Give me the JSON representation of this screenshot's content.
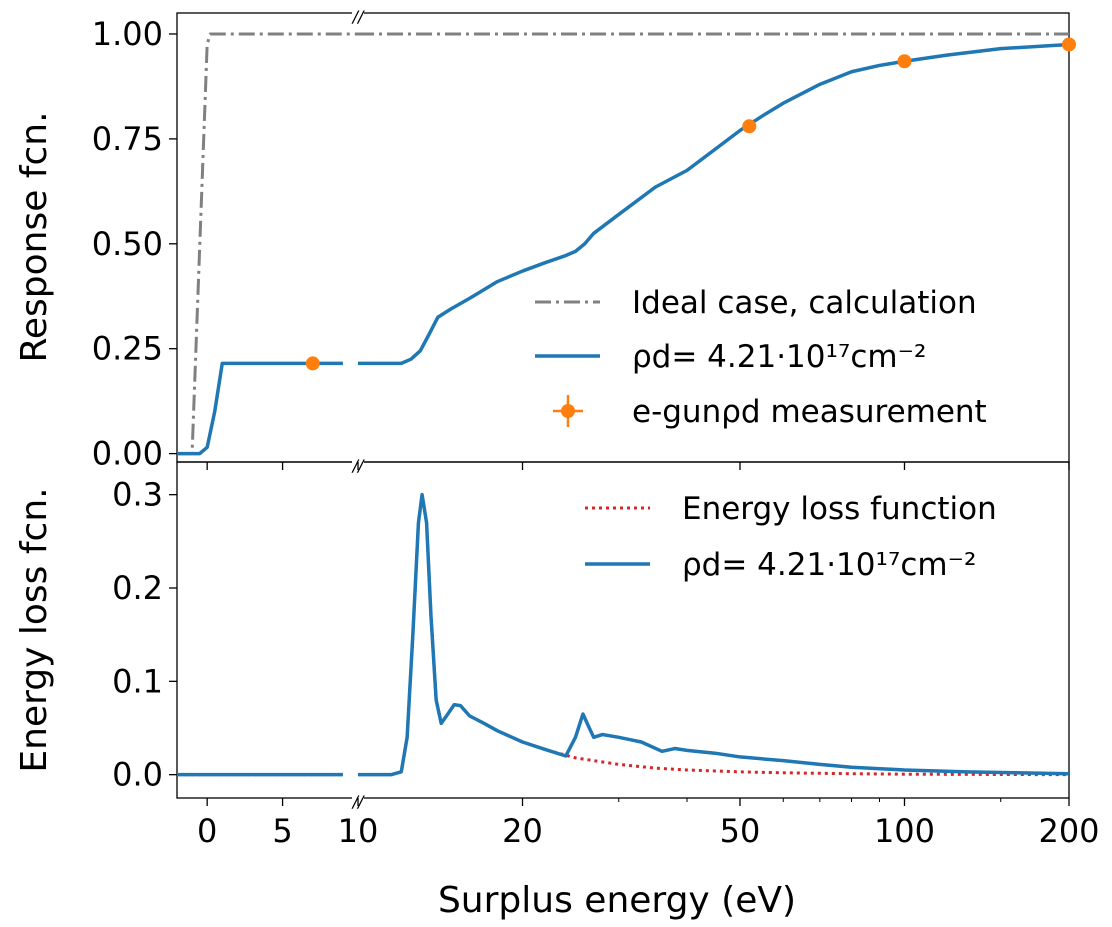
{
  "chart_data": [
    {
      "type": "line",
      "panel": "top",
      "ylabel": "Response fcn.",
      "xlabel": "",
      "ylim": [
        -0.02,
        1.05
      ],
      "yticks": [
        0.0,
        0.25,
        0.5,
        0.75,
        1.0
      ],
      "ytick_labels": [
        "0.00",
        "0.25",
        "0.50",
        "0.75",
        "1.00"
      ],
      "x_axis": "broken: linear from -2 to 10, log from 10 to 200",
      "legend_placement": "lower-right",
      "series": [
        {
          "name": "Ideal case, calculation",
          "style": "dash-dot",
          "color": "#808080",
          "segments": [
            [
              [
                -2.0,
                0.0
              ],
              [
                -1.0,
                0.0
              ],
              [
                0.0,
                0.975
              ],
              [
                0.2,
                1.0
              ],
              [
                10.0,
                1.0
              ]
            ],
            [
              [
                10.0,
                1.0
              ],
              [
                200.0,
                1.0
              ]
            ]
          ]
        },
        {
          "name": "ρd= 4.21·10^17 cm^-2",
          "style": "solid",
          "color": "#1f77b4",
          "segments": [
            [
              [
                -2.0,
                0.0
              ],
              [
                -0.5,
                0.0
              ],
              [
                0.0,
                0.015
              ],
              [
                0.5,
                0.1
              ],
              [
                1.0,
                0.215
              ],
              [
                9.0,
                0.215
              ]
            ],
            [
              [
                10.0,
                0.215
              ],
              [
                12.0,
                0.215
              ],
              [
                12.5,
                0.225
              ],
              [
                13.0,
                0.245
              ],
              [
                13.5,
                0.285
              ],
              [
                14.0,
                0.325
              ],
              [
                14.8,
                0.345
              ],
              [
                16.0,
                0.37
              ],
              [
                18.0,
                0.41
              ],
              [
                20.0,
                0.435
              ],
              [
                22.0,
                0.455
              ],
              [
                24.0,
                0.472
              ],
              [
                25.0,
                0.482
              ],
              [
                26.0,
                0.5
              ],
              [
                27.0,
                0.525
              ],
              [
                30.0,
                0.57
              ],
              [
                35.0,
                0.635
              ],
              [
                40.0,
                0.675
              ],
              [
                45.0,
                0.725
              ],
              [
                50.0,
                0.77
              ],
              [
                55.0,
                0.805
              ],
              [
                60.0,
                0.835
              ],
              [
                70.0,
                0.88
              ],
              [
                80.0,
                0.91
              ],
              [
                90.0,
                0.925
              ],
              [
                100.0,
                0.935
              ],
              [
                120.0,
                0.95
              ],
              [
                150.0,
                0.965
              ],
              [
                200.0,
                0.975
              ]
            ]
          ]
        },
        {
          "name": "e-gunρd measurement",
          "style": "markers",
          "color": "#ff7f0e",
          "points": [
            [
              7.0,
              0.215
            ],
            [
              52.0,
              0.78
            ],
            [
              100.0,
              0.935
            ],
            [
              200.0,
              0.975
            ]
          ]
        }
      ]
    },
    {
      "type": "line",
      "panel": "bottom",
      "ylabel": "Energy loss fcn.",
      "xlabel": "Surplus energy (eV)",
      "ylim": [
        -0.025,
        0.335
      ],
      "yticks": [
        0.0,
        0.1,
        0.2,
        0.3
      ],
      "ytick_labels": [
        "0.0",
        "0.1",
        "0.2",
        "0.3"
      ],
      "xticks": [
        0,
        5,
        10,
        20,
        50,
        100,
        200
      ],
      "xtick_labels": [
        "0",
        "5",
        "10",
        "20",
        "50",
        "100",
        "200"
      ],
      "x_axis": "broken: linear from -2 to 10, log from 10 to 200",
      "legend_placement": "upper-right",
      "series": [
        {
          "name": "Energy loss function",
          "style": "dotted",
          "color": "#d62728",
          "segments": [
            [
              [
                -2.0,
                0.0
              ],
              [
                9.0,
                0.0
              ]
            ],
            [
              [
                10.0,
                0.0
              ],
              [
                11.5,
                0.0
              ],
              [
                12.0,
                0.003
              ],
              [
                12.3,
                0.04
              ],
              [
                12.6,
                0.15
              ],
              [
                12.9,
                0.27
              ],
              [
                13.1,
                0.3
              ],
              [
                13.35,
                0.27
              ],
              [
                13.6,
                0.17
              ],
              [
                13.9,
                0.08
              ],
              [
                14.2,
                0.055
              ],
              [
                14.6,
                0.065
              ],
              [
                15.0,
                0.075
              ],
              [
                15.4,
                0.074
              ],
              [
                16.0,
                0.063
              ],
              [
                17.0,
                0.055
              ],
              [
                18.0,
                0.047
              ],
              [
                20.0,
                0.035
              ],
              [
                22.0,
                0.027
              ],
              [
                25.0,
                0.018
              ],
              [
                30.0,
                0.011
              ],
              [
                35.0,
                0.007
              ],
              [
                40.0,
                0.005
              ],
              [
                50.0,
                0.003
              ],
              [
                60.0,
                0.002
              ],
              [
                80.0,
                0.001
              ],
              [
                100.0,
                0.0005
              ],
              [
                200.0,
                0.0
              ]
            ]
          ]
        },
        {
          "name": "ρd= 4.21·10^17 cm^-2",
          "style": "solid",
          "color": "#1f77b4",
          "segments": [
            [
              [
                -2.0,
                0.0
              ],
              [
                9.0,
                0.0
              ]
            ],
            [
              [
                10.0,
                0.0
              ],
              [
                11.5,
                0.0
              ],
              [
                12.0,
                0.003
              ],
              [
                12.3,
                0.04
              ],
              [
                12.6,
                0.15
              ],
              [
                12.9,
                0.27
              ],
              [
                13.1,
                0.3
              ],
              [
                13.35,
                0.27
              ],
              [
                13.6,
                0.17
              ],
              [
                13.9,
                0.08
              ],
              [
                14.2,
                0.055
              ],
              [
                14.6,
                0.065
              ],
              [
                15.0,
                0.075
              ],
              [
                15.4,
                0.074
              ],
              [
                16.0,
                0.063
              ],
              [
                17.0,
                0.055
              ],
              [
                18.0,
                0.047
              ],
              [
                20.0,
                0.035
              ],
              [
                22.0,
                0.027
              ],
              [
                24.0,
                0.02
              ],
              [
                25.0,
                0.04
              ],
              [
                25.8,
                0.065
              ],
              [
                26.5,
                0.05
              ],
              [
                27.0,
                0.04
              ],
              [
                28.0,
                0.043
              ],
              [
                30.0,
                0.04
              ],
              [
                33.0,
                0.035
              ],
              [
                36.0,
                0.025
              ],
              [
                38.0,
                0.028
              ],
              [
                40.0,
                0.026
              ],
              [
                45.0,
                0.023
              ],
              [
                50.0,
                0.019
              ],
              [
                60.0,
                0.015
              ],
              [
                70.0,
                0.011
              ],
              [
                80.0,
                0.008
              ],
              [
                100.0,
                0.005
              ],
              [
                130.0,
                0.003
              ],
              [
                160.0,
                0.002
              ],
              [
                200.0,
                0.001
              ]
            ]
          ]
        }
      ]
    }
  ],
  "legend_top": [
    {
      "label": "Ideal case, calculation"
    },
    {
      "label": "ρd= 4.21·10¹⁷cm⁻²"
    },
    {
      "label": "e-gunρd measurement"
    }
  ],
  "legend_bottom": [
    {
      "label": "Energy loss function"
    },
    {
      "label": "ρd= 4.21·10¹⁷cm⁻²"
    }
  ],
  "break_mark": "//"
}
